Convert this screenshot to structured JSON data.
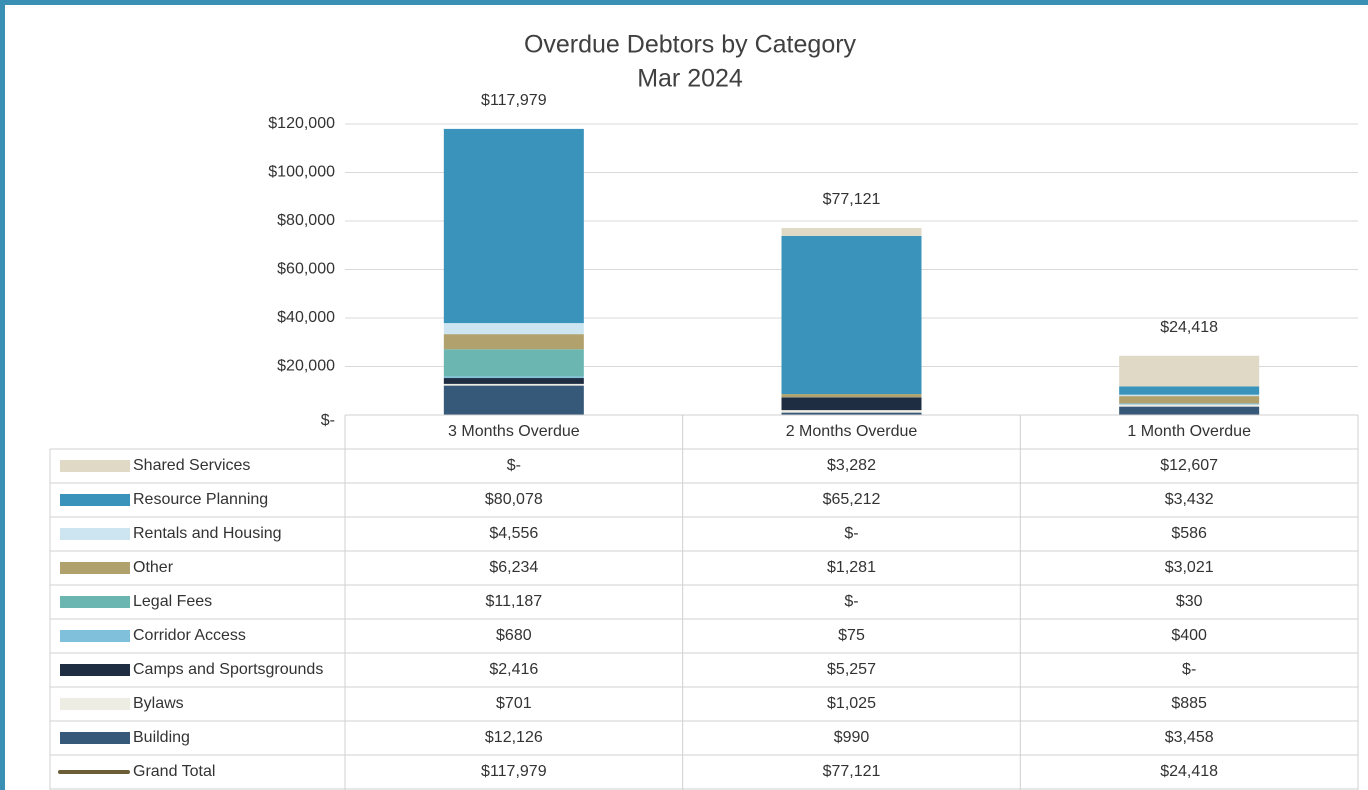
{
  "chart_data": {
    "type": "bar",
    "stacked": true,
    "title": "Overdue Debtors by Category",
    "subtitle": "Mar 2024",
    "categories": [
      "3 Months Overdue",
      "2 Months Overdue",
      "1 Month Overdue"
    ],
    "ylim": [
      0,
      120000
    ],
    "yticks": [
      {
        "value": 0,
        "label": "$-"
      },
      {
        "value": 20000,
        "label": "$20,000"
      },
      {
        "value": 40000,
        "label": "$40,000"
      },
      {
        "value": 60000,
        "label": "$60,000"
      },
      {
        "value": 80000,
        "label": "$80,000"
      },
      {
        "value": 100000,
        "label": "$100,000"
      },
      {
        "value": 120000,
        "label": "$120,000"
      }
    ],
    "grid": true,
    "data_table": true,
    "series": [
      {
        "name": "Shared Services",
        "color": "#dfd9c5",
        "values": [
          0,
          3282,
          12607
        ],
        "value_labels": [
          "$-",
          "$3,282",
          "$12,607"
        ]
      },
      {
        "name": "Resource Planning",
        "color": "#3a93ba",
        "values": [
          80078,
          65212,
          3432
        ],
        "value_labels": [
          "$80,078",
          "$65,212",
          "$3,432"
        ]
      },
      {
        "name": "Rentals and Housing",
        "color": "#cde5f0",
        "values": [
          4556,
          0,
          586
        ],
        "value_labels": [
          "$4,556",
          "$-",
          "$586"
        ]
      },
      {
        "name": "Other",
        "color": "#b1a16c",
        "values": [
          6234,
          1281,
          3021
        ],
        "value_labels": [
          "$6,234",
          "$1,281",
          "$3,021"
        ]
      },
      {
        "name": "Legal Fees",
        "color": "#6bb6b0",
        "values": [
          11187,
          0,
          30
        ],
        "value_labels": [
          "$11,187",
          "$-",
          "$30"
        ]
      },
      {
        "name": "Corridor Access",
        "color": "#80c0da",
        "values": [
          680,
          75,
          400
        ],
        "value_labels": [
          "$680",
          "$75",
          "$400"
        ]
      },
      {
        "name": "Camps and Sportsgrounds",
        "color": "#1f2d42",
        "values": [
          2416,
          5257,
          0
        ],
        "value_labels": [
          "$2,416",
          "$5,257",
          "$-"
        ]
      },
      {
        "name": "Bylaws",
        "color": "#eeede3",
        "values": [
          701,
          1025,
          885
        ],
        "value_labels": [
          "$701",
          "$1,025",
          "$885"
        ]
      },
      {
        "name": "Building",
        "color": "#365879",
        "values": [
          12126,
          990,
          3458
        ],
        "value_labels": [
          "$12,126",
          "$990",
          "$3,458"
        ]
      },
      {
        "name": "Grand Total",
        "type": "line",
        "color": "#6b5d36",
        "values": [
          117979,
          77121,
          24418
        ],
        "value_labels": [
          "$117,979",
          "$77,121",
          "$24,418"
        ]
      }
    ]
  }
}
